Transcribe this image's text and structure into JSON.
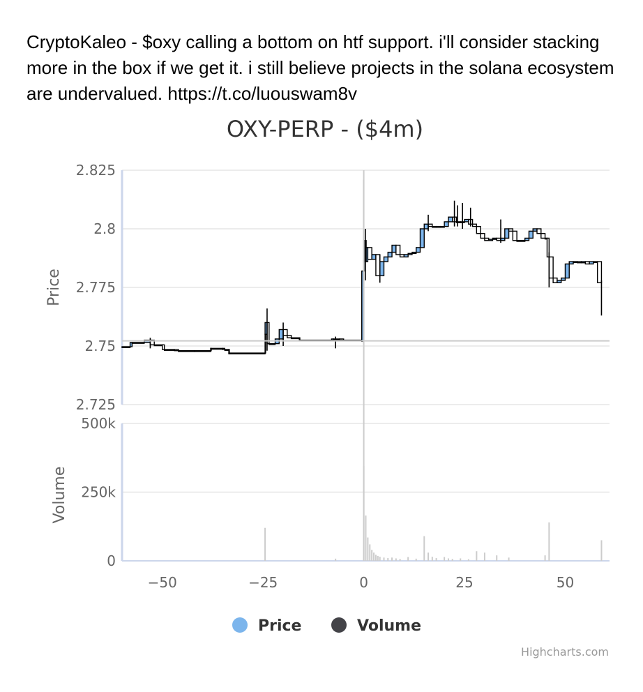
{
  "tweet": {
    "text": "CryptoKaleo - $oxy calling a bottom on htf support. i'll consider stacking more in the box if we get it. i still believe projects in the solana ecosystem are undervalued. https://t.co/luouswam8v"
  },
  "credit": "Highcharts.com",
  "colors": {
    "price_up": "#7cb5ec",
    "candle_line": "#000000",
    "volume": "#cccccc",
    "grid": "#e6e6e6",
    "axis": "#ccd6eb"
  },
  "chart_data": {
    "type": "candlestick",
    "title": "OXY-PERP - ($4m)",
    "x_ticks": [
      -50,
      -25,
      0,
      25,
      50
    ],
    "x_tick_labels": [
      "−50",
      "−25",
      "0",
      "25",
      "50"
    ],
    "xlim": [
      -60,
      61
    ],
    "price_axis": {
      "label": "Price",
      "ylim": [
        2.725,
        2.825
      ],
      "ticks": [
        2.725,
        2.75,
        2.775,
        2.8,
        2.825
      ],
      "tick_labels": [
        "2.725",
        "2.75",
        "2.775",
        "2.8",
        "2.825"
      ]
    },
    "volume_axis": {
      "label": "Volume",
      "ylim": [
        0,
        500000
      ],
      "ticks": [
        0,
        250000,
        500000
      ],
      "tick_labels": [
        "0",
        "250k",
        "500k"
      ]
    },
    "legend": [
      "Price",
      "Volume"
    ],
    "legend_placement": "bottom-center",
    "price_segments": [
      [
        -60,
        2.7497
      ],
      [
        -58,
        2.7497
      ],
      [
        -57.5,
        2.7515
      ],
      [
        -54.5,
        2.7515
      ],
      [
        -53,
        2.7525
      ],
      [
        -52,
        2.7505
      ],
      [
        -50,
        2.7505
      ],
      [
        -49.5,
        2.7485
      ],
      [
        -47,
        2.7485
      ],
      [
        -46,
        2.748
      ],
      [
        -42,
        2.748
      ],
      [
        -38,
        2.748
      ],
      [
        -38,
        2.749
      ],
      [
        -35,
        2.749
      ],
      [
        -34.5,
        2.7485
      ],
      [
        -33.5,
        2.7485
      ],
      [
        -33.5,
        2.747
      ],
      [
        -24.5,
        2.747
      ],
      [
        -24.5,
        2.755
      ],
      [
        -24,
        2.76
      ],
      [
        -23.5,
        2.751
      ],
      [
        -22,
        2.751
      ],
      [
        -21,
        2.753
      ],
      [
        -20,
        2.757
      ],
      [
        -19,
        2.7545
      ],
      [
        -18,
        2.7535
      ],
      [
        -16,
        2.7535
      ],
      [
        -16,
        2.7525
      ],
      [
        -8,
        2.7525
      ],
      [
        -7.5,
        2.753
      ],
      [
        -6,
        2.753
      ],
      [
        -5,
        2.7525
      ],
      [
        -0.5,
        2.7525
      ],
      [
        -0.5,
        2.752
      ],
      [
        0,
        2.782
      ],
      [
        0.3,
        2.795
      ],
      [
        0.6,
        2.786
      ],
      [
        1,
        2.792
      ],
      [
        2,
        2.787
      ],
      [
        3,
        2.789
      ],
      [
        4,
        2.78
      ],
      [
        5,
        2.786
      ],
      [
        6,
        2.788
      ],
      [
        7,
        2.79
      ],
      [
        8,
        2.793
      ],
      [
        9,
        2.789
      ],
      [
        10,
        2.788
      ],
      [
        11,
        2.789
      ],
      [
        12,
        2.7895
      ],
      [
        13,
        2.79
      ],
      [
        14,
        2.792
      ],
      [
        15,
        2.8
      ],
      [
        16,
        2.802
      ],
      [
        17,
        2.801
      ],
      [
        18,
        2.801
      ],
      [
        19,
        2.801
      ],
      [
        20,
        2.801
      ],
      [
        21,
        2.803
      ],
      [
        22,
        2.805
      ],
      [
        23,
        2.803
      ],
      [
        24,
        2.803
      ],
      [
        25,
        2.803
      ],
      [
        26,
        2.804
      ],
      [
        27,
        2.802
      ],
      [
        28,
        2.801
      ],
      [
        29,
        2.798
      ],
      [
        30,
        2.796
      ],
      [
        31,
        2.795
      ],
      [
        32,
        2.7955
      ],
      [
        33,
        2.796
      ],
      [
        34,
        2.795
      ],
      [
        35,
        2.796
      ],
      [
        36,
        2.8
      ],
      [
        37,
        2.799
      ],
      [
        38,
        2.795
      ],
      [
        40,
        2.795
      ],
      [
        41,
        2.796
      ],
      [
        42,
        2.799
      ],
      [
        43,
        2.8
      ],
      [
        44,
        2.798
      ],
      [
        45,
        2.796
      ],
      [
        45.5,
        2.796
      ],
      [
        46,
        2.788
      ],
      [
        47,
        2.779
      ],
      [
        48,
        2.777
      ],
      [
        49,
        2.778
      ],
      [
        50,
        2.779
      ],
      [
        51,
        2.785
      ],
      [
        52,
        2.786
      ],
      [
        53,
        2.786
      ],
      [
        54,
        2.7855
      ],
      [
        55,
        2.786
      ],
      [
        56,
        2.785
      ],
      [
        57,
        2.786
      ],
      [
        58,
        2.786
      ],
      [
        59,
        2.777
      ]
    ],
    "price_wicks": [
      [
        -53,
        2.749,
        2.7535
      ],
      [
        -24,
        2.748,
        2.766
      ],
      [
        -20,
        2.75,
        2.76
      ],
      [
        -7,
        2.749,
        2.754
      ],
      [
        0,
        2.751,
        2.821
      ],
      [
        0.4,
        2.778,
        2.8
      ],
      [
        4,
        2.777,
        2.789
      ],
      [
        16,
        2.799,
        2.806
      ],
      [
        22.5,
        2.801,
        2.812
      ],
      [
        23.3,
        2.801,
        2.81
      ],
      [
        24.5,
        2.8,
        2.811
      ],
      [
        26.5,
        2.801,
        2.809
      ],
      [
        34,
        2.794,
        2.804
      ],
      [
        46,
        2.775,
        2.79
      ],
      [
        59,
        2.763,
        2.778
      ]
    ],
    "volume_bars": [
      [
        -24.5,
        120000
      ],
      [
        -7,
        8000
      ],
      [
        0,
        345000
      ],
      [
        0.5,
        165000
      ],
      [
        1,
        85000
      ],
      [
        1.5,
        60000
      ],
      [
        2,
        40000
      ],
      [
        2.5,
        30000
      ],
      [
        3,
        22000
      ],
      [
        3.5,
        18000
      ],
      [
        4,
        15000
      ],
      [
        5,
        12000
      ],
      [
        6,
        10000
      ],
      [
        7,
        12000
      ],
      [
        8,
        9000
      ],
      [
        9,
        7000
      ],
      [
        11,
        14000
      ],
      [
        13,
        8000
      ],
      [
        15,
        90000
      ],
      [
        16,
        30000
      ],
      [
        17,
        15000
      ],
      [
        18,
        10000
      ],
      [
        20,
        14000
      ],
      [
        21,
        9000
      ],
      [
        22,
        7000
      ],
      [
        24,
        9000
      ],
      [
        26,
        6000
      ],
      [
        28,
        35000
      ],
      [
        30,
        30000
      ],
      [
        33,
        20000
      ],
      [
        36,
        12000
      ],
      [
        45,
        20000
      ],
      [
        46,
        140000
      ],
      [
        59,
        75000
      ]
    ]
  }
}
